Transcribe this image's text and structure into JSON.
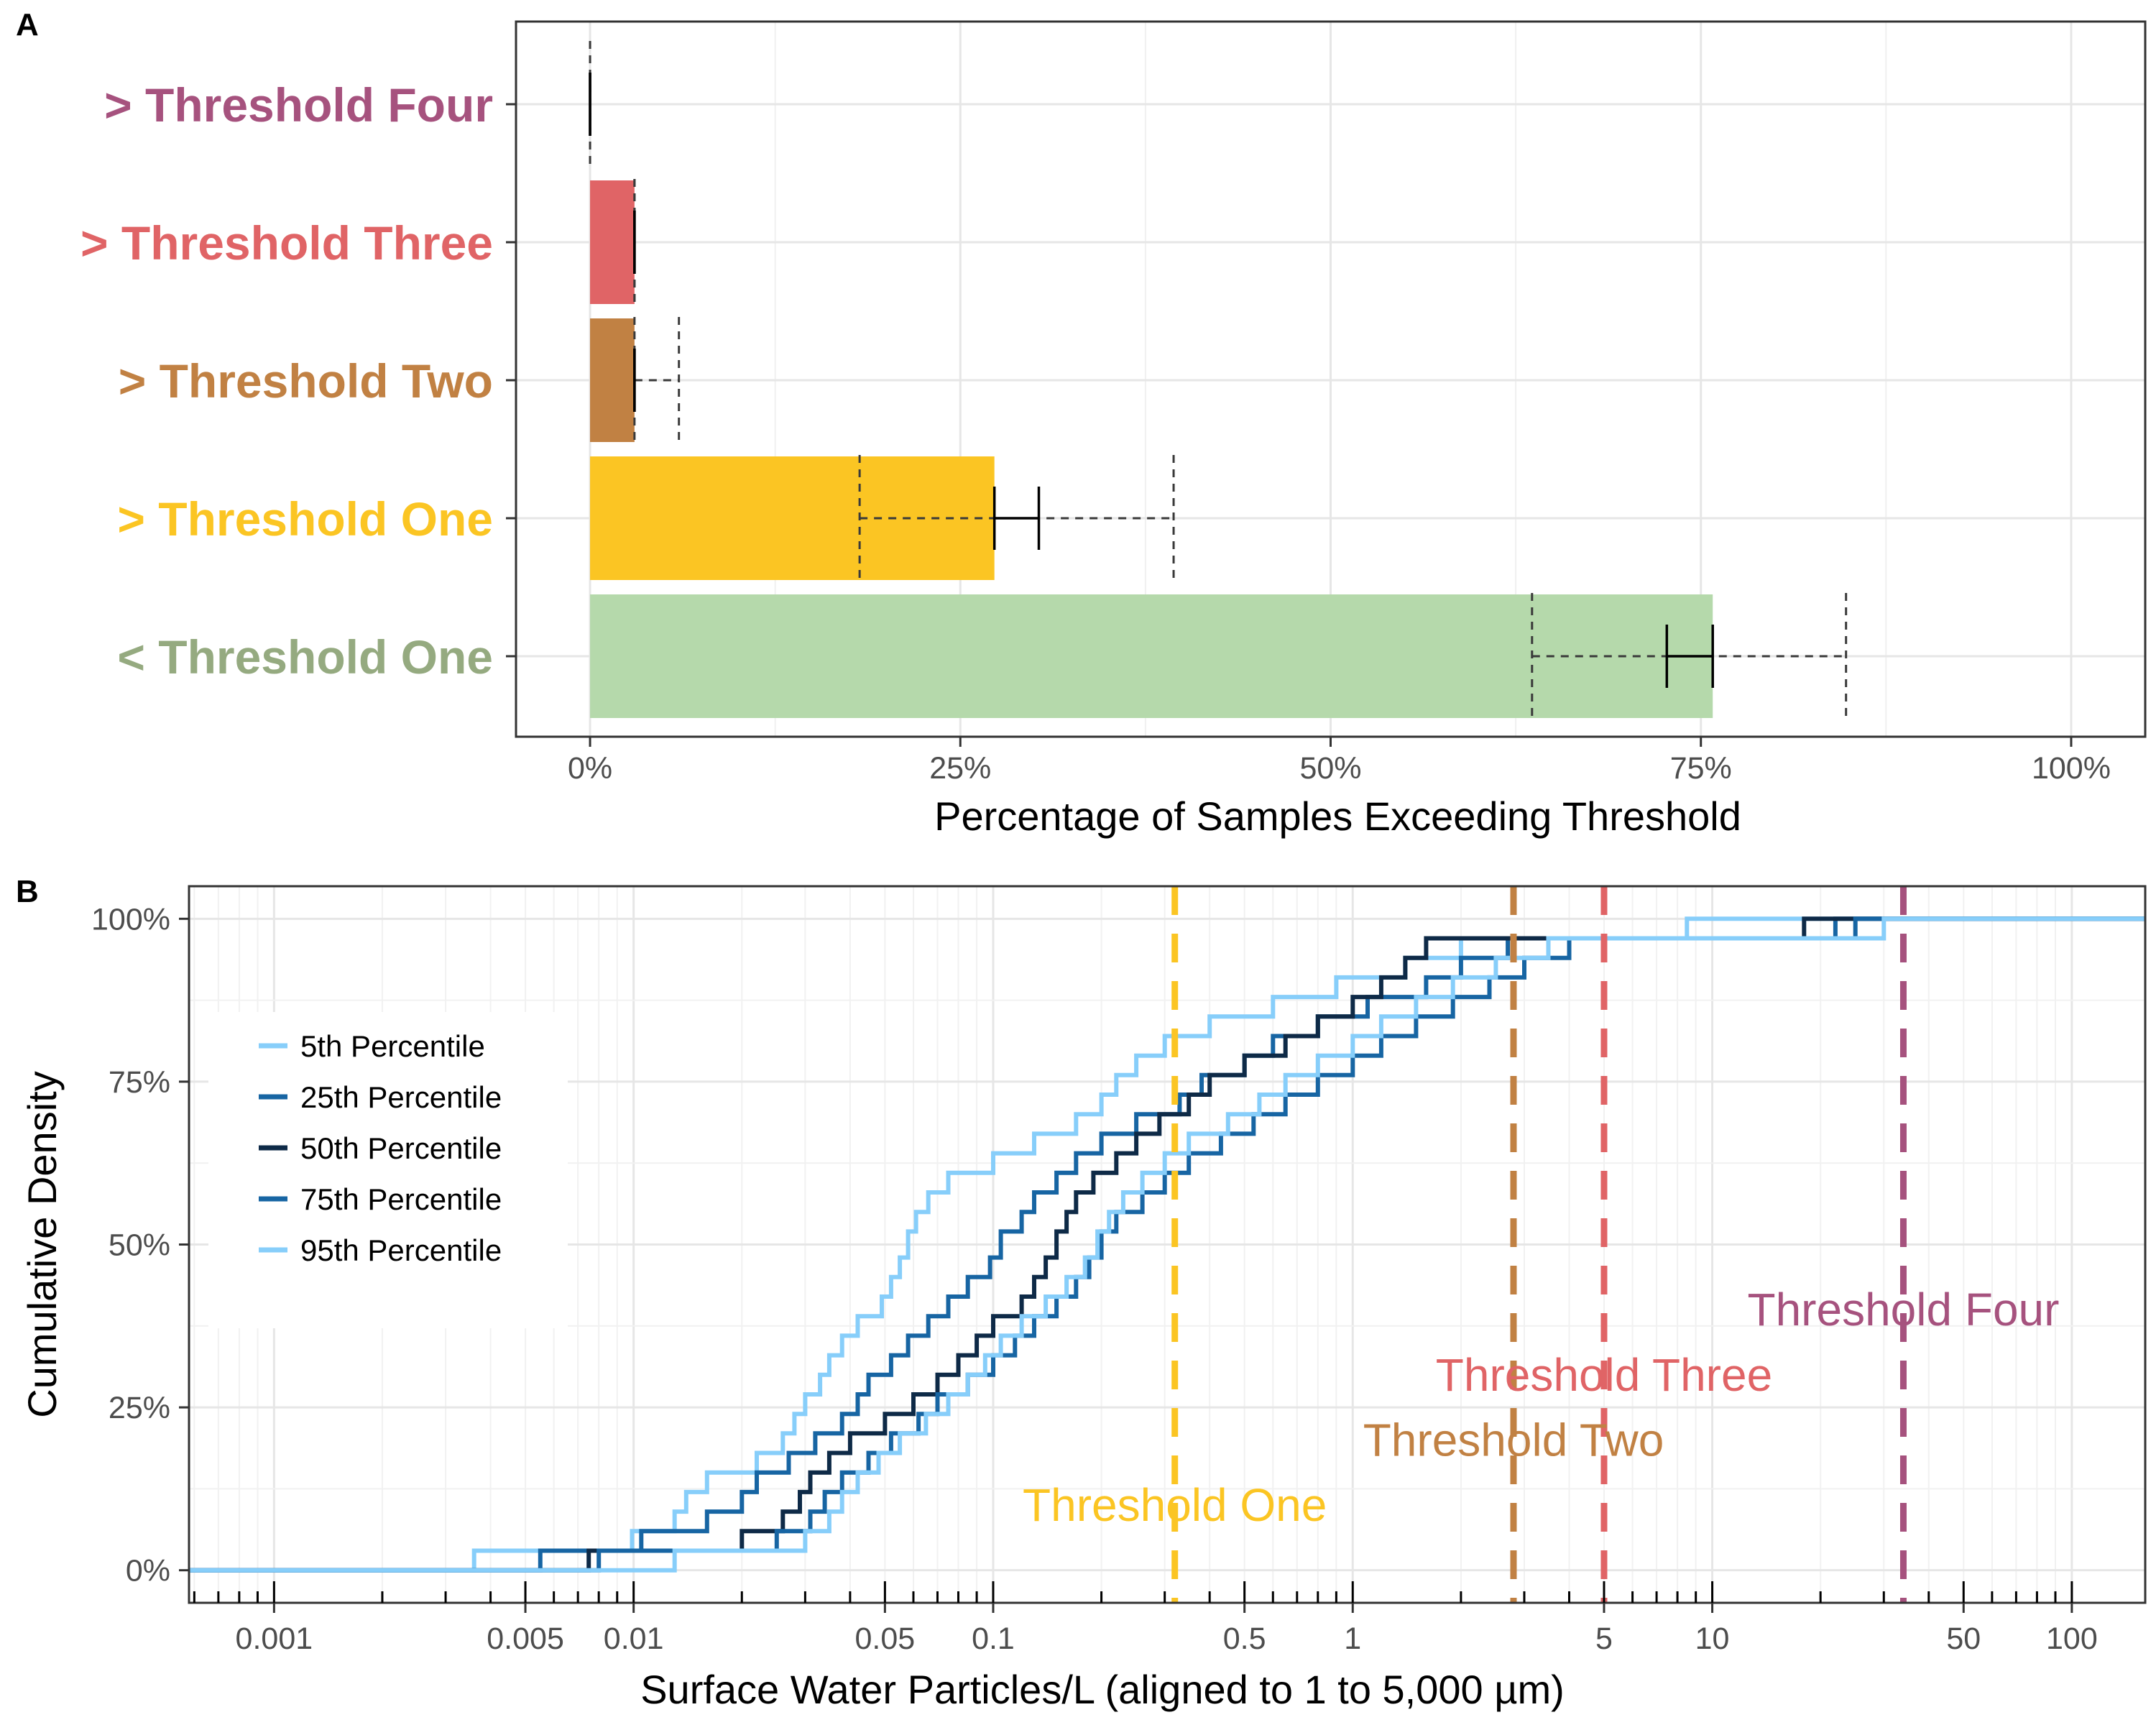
{
  "panel_labels": [
    "A",
    "B"
  ],
  "chart_data": [
    {
      "type": "bar",
      "orientation": "horizontal",
      "categories": [
        "> Threshold Four",
        "> Threshold Three",
        "> Threshold Two",
        "> Threshold One",
        "< Threshold One"
      ],
      "category_colors": [
        "#A6527E",
        "#E06466",
        "#C18143",
        "#FBC523",
        "#95AA80"
      ],
      "bar_colors": [
        "#A6527E",
        "#E06466",
        "#C18143",
        "#FBC523",
        "#B5D9AB"
      ],
      "values": [
        0,
        3,
        3,
        27.3,
        75.8
      ],
      "error_bars": [
        {
          "low": 0,
          "high": 0
        },
        {
          "low": 3,
          "high": 3
        },
        {
          "low": 3,
          "high": 3
        },
        {
          "low": 27.3,
          "high": 30.3
        },
        {
          "low": 72.7,
          "high": 75.8
        }
      ],
      "ci_dashed": [
        {
          "low": 0,
          "high": 0
        },
        {
          "low": 3,
          "high": 3
        },
        {
          "low": 3,
          "high": 6
        },
        {
          "low": 18.2,
          "high": 39.4
        },
        {
          "low": 63.6,
          "high": 84.8
        }
      ],
      "xlabel": "Percentage of Samples Exceeding Threshold",
      "xlim": [
        -5,
        105
      ],
      "xticks": [
        0,
        25,
        50,
        75,
        100
      ],
      "xtick_labels": [
        "0%",
        "25%",
        "50%",
        "75%",
        "100%"
      ],
      "grid": true
    },
    {
      "type": "line",
      "step": true,
      "xscale": "log",
      "xlabel": "Surface Water Particles/L (aligned to 1 to 5,000 µm)",
      "ylabel": "Cumulative Density",
      "xlim": [
        0.00058,
        160
      ],
      "ylim": [
        -0.05,
        1.05
      ],
      "xticks": [
        0.001,
        0.005,
        0.01,
        0.05,
        0.1,
        0.5,
        1,
        5,
        10,
        50,
        100
      ],
      "xtick_labels": [
        "0.001",
        "0.005",
        "0.01",
        "0.05",
        "0.1",
        "0.5",
        "1",
        "5",
        "10",
        "50",
        "100"
      ],
      "yticks": [
        0,
        0.25,
        0.5,
        0.75,
        1
      ],
      "ytick_labels": [
        "0%",
        "25%",
        "50%",
        "75%",
        "100%"
      ],
      "legend_position": "left",
      "series": [
        {
          "name": "5th Percentile",
          "color": "#87CEFA",
          "x": [
            0.0004,
            0.0036,
            0.0099,
            0.013,
            0.014,
            0.016,
            0.022,
            0.026,
            0.028,
            0.03,
            0.033,
            0.035,
            0.038,
            0.042,
            0.049,
            0.052,
            0.055,
            0.058,
            0.061,
            0.066,
            0.075,
            0.1,
            0.13,
            0.17,
            0.2,
            0.22,
            0.25,
            0.3,
            0.4,
            0.6,
            0.9,
            1.4,
            2.0,
            2.5,
            8.5,
            30.0,
            200
          ],
          "y": [
            0,
            0.03,
            0.06,
            0.09,
            0.12,
            0.15,
            0.18,
            0.21,
            0.24,
            0.27,
            0.3,
            0.33,
            0.36,
            0.39,
            0.42,
            0.45,
            0.48,
            0.52,
            0.55,
            0.58,
            0.61,
            0.64,
            0.67,
            0.7,
            0.73,
            0.76,
            0.79,
            0.82,
            0.85,
            0.88,
            0.91,
            0.94,
            0.97,
            0.97,
            1.0,
            1.0,
            1.0
          ]
        },
        {
          "name": "25th Percentile",
          "color": "#1765A3",
          "x": [
            0.0004,
            0.0055,
            0.0105,
            0.016,
            0.02,
            0.022,
            0.027,
            0.032,
            0.038,
            0.042,
            0.045,
            0.052,
            0.058,
            0.066,
            0.075,
            0.085,
            0.098,
            0.105,
            0.12,
            0.13,
            0.15,
            0.17,
            0.2,
            0.25,
            0.33,
            0.38,
            0.5,
            0.6,
            0.8,
            1.1,
            1.6,
            2.0,
            2.7,
            12.0,
            22.0,
            300
          ],
          "y": [
            0,
            0.03,
            0.06,
            0.09,
            0.12,
            0.15,
            0.18,
            0.21,
            0.24,
            0.27,
            0.3,
            0.33,
            0.36,
            0.39,
            0.42,
            0.45,
            0.48,
            0.52,
            0.55,
            0.58,
            0.61,
            0.64,
            0.67,
            0.7,
            0.73,
            0.76,
            0.79,
            0.82,
            0.85,
            0.88,
            0.91,
            0.94,
            0.97,
            0.97,
            1.0,
            1.0
          ]
        },
        {
          "name": "50th Percentile",
          "color": "#0E2A47",
          "x": [
            0.0004,
            0.0075,
            0.02,
            0.026,
            0.029,
            0.031,
            0.035,
            0.04,
            0.05,
            0.06,
            0.07,
            0.08,
            0.09,
            0.1,
            0.12,
            0.13,
            0.14,
            0.15,
            0.16,
            0.17,
            0.19,
            0.22,
            0.25,
            0.29,
            0.35,
            0.4,
            0.5,
            0.65,
            0.8,
            1.0,
            1.2,
            1.4,
            1.6,
            2.2,
            3.0,
            18.0,
            300
          ],
          "y": [
            0,
            0.03,
            0.06,
            0.09,
            0.12,
            0.15,
            0.18,
            0.21,
            0.24,
            0.27,
            0.3,
            0.33,
            0.36,
            0.39,
            0.42,
            0.45,
            0.48,
            0.52,
            0.55,
            0.58,
            0.61,
            0.64,
            0.67,
            0.7,
            0.73,
            0.76,
            0.79,
            0.82,
            0.85,
            0.88,
            0.91,
            0.94,
            0.97,
            0.97,
            0.97,
            1.0,
            1.0
          ]
        },
        {
          "name": "75th Percentile",
          "color": "#1765A3",
          "x": [
            0.0004,
            0.008,
            0.025,
            0.031,
            0.034,
            0.038,
            0.045,
            0.052,
            0.062,
            0.07,
            0.085,
            0.1,
            0.115,
            0.13,
            0.15,
            0.17,
            0.185,
            0.2,
            0.22,
            0.26,
            0.3,
            0.35,
            0.43,
            0.53,
            0.65,
            0.8,
            1.0,
            1.2,
            1.5,
            1.9,
            2.4,
            3.0,
            4.0,
            14.0,
            25.0,
            300
          ],
          "y": [
            0,
            0.03,
            0.06,
            0.09,
            0.12,
            0.15,
            0.18,
            0.21,
            0.24,
            0.27,
            0.3,
            0.33,
            0.36,
            0.39,
            0.42,
            0.45,
            0.48,
            0.52,
            0.55,
            0.58,
            0.61,
            0.64,
            0.67,
            0.7,
            0.73,
            0.76,
            0.79,
            0.82,
            0.85,
            0.88,
            0.91,
            0.94,
            0.97,
            0.97,
            1.0,
            1.0
          ]
        },
        {
          "name": "95th Percentile",
          "color": "#87CEFA",
          "x": [
            0.0004,
            0.013,
            0.03,
            0.035,
            0.038,
            0.042,
            0.048,
            0.055,
            0.065,
            0.075,
            0.085,
            0.095,
            0.105,
            0.12,
            0.14,
            0.16,
            0.18,
            0.195,
            0.21,
            0.23,
            0.26,
            0.3,
            0.35,
            0.45,
            0.55,
            0.65,
            0.8,
            1.0,
            1.2,
            1.5,
            1.9,
            2.5,
            3.5,
            30.0,
            300
          ],
          "y": [
            0,
            0.03,
            0.06,
            0.09,
            0.12,
            0.15,
            0.18,
            0.21,
            0.24,
            0.27,
            0.3,
            0.33,
            0.36,
            0.39,
            0.42,
            0.45,
            0.48,
            0.52,
            0.55,
            0.58,
            0.61,
            0.64,
            0.67,
            0.7,
            0.73,
            0.76,
            0.79,
            0.82,
            0.85,
            0.88,
            0.91,
            0.94,
            0.97,
            1.0,
            1.0
          ]
        }
      ],
      "thresholds": [
        {
          "name": "Threshold One",
          "x": 0.32,
          "color": "#FBC523",
          "label_y": 0.1
        },
        {
          "name": "Threshold Two",
          "x": 2.8,
          "color": "#C18143",
          "label_y": 0.2
        },
        {
          "name": "Threshold Three",
          "x": 5.0,
          "color": "#E06466",
          "label_y": 0.3
        },
        {
          "name": "Threshold Four",
          "x": 34.0,
          "color": "#A6527E",
          "label_y": 0.4
        }
      ]
    }
  ]
}
